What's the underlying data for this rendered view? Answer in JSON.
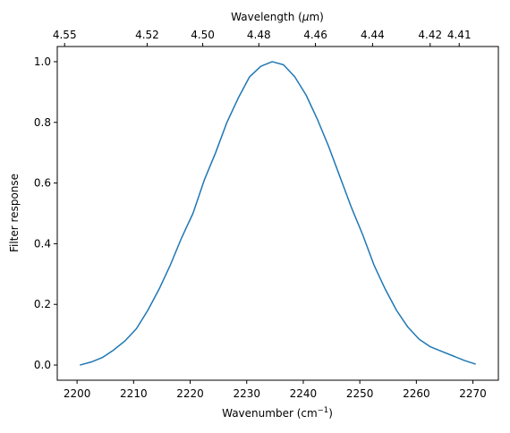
{
  "chart_data": {
    "type": "line",
    "xlabel": "Wavenumber (cm",
    "xlabel_sup": "−1",
    "xlabel_end": ")",
    "ylabel": "Filter response",
    "top_xlabel": "Wavelength (",
    "top_xlabel_mu": "μ",
    "top_xlabel_end": "m)",
    "xlim": [
      2196.5,
      2274.5
    ],
    "ylim": [
      -0.05,
      1.05
    ],
    "xticks": [
      2200,
      2210,
      2220,
      2230,
      2240,
      2250,
      2260,
      2270
    ],
    "xtick_labels": [
      "2200",
      "2210",
      "2220",
      "2230",
      "2240",
      "2250",
      "2260",
      "2270"
    ],
    "yticks": [
      0.0,
      0.2,
      0.4,
      0.6,
      0.8,
      1.0
    ],
    "ytick_labels": [
      "0.0",
      "0.2",
      "0.4",
      "0.6",
      "0.8",
      "1.0"
    ],
    "top_ticks_wavelength_um": [
      4.55,
      4.52,
      4.5,
      4.48,
      4.46,
      4.44,
      4.42,
      4.41
    ],
    "top_tick_labels": [
      "4.55",
      "4.52",
      "4.50",
      "4.48",
      "4.46",
      "4.44",
      "4.42",
      "4.41"
    ],
    "grid": false,
    "series": [
      {
        "color": "#1f77b4",
        "x": [
          2200.5,
          2202.5,
          2204.5,
          2206.5,
          2208.5,
          2210.5,
          2212.5,
          2214.5,
          2216.5,
          2218.5,
          2220.5,
          2222.5,
          2224.5,
          2226.5,
          2228.5,
          2230.5,
          2232.5,
          2234.5,
          2236.5,
          2238.5,
          2240.5,
          2242.5,
          2244.5,
          2246.5,
          2248.5,
          2250.5,
          2252.5,
          2254.5,
          2256.5,
          2258.5,
          2260.5,
          2262.5,
          2264.5,
          2266.5,
          2268.5,
          2270.5
        ],
        "y": [
          0.0,
          0.01,
          0.025,
          0.05,
          0.08,
          0.12,
          0.18,
          0.25,
          0.33,
          0.42,
          0.5,
          0.61,
          0.7,
          0.8,
          0.88,
          0.95,
          0.985,
          1.0,
          0.99,
          0.95,
          0.89,
          0.81,
          0.72,
          0.62,
          0.52,
          0.43,
          0.33,
          0.25,
          0.18,
          0.125,
          0.085,
          0.06,
          0.045,
          0.03,
          0.015,
          0.003
        ]
      }
    ]
  }
}
